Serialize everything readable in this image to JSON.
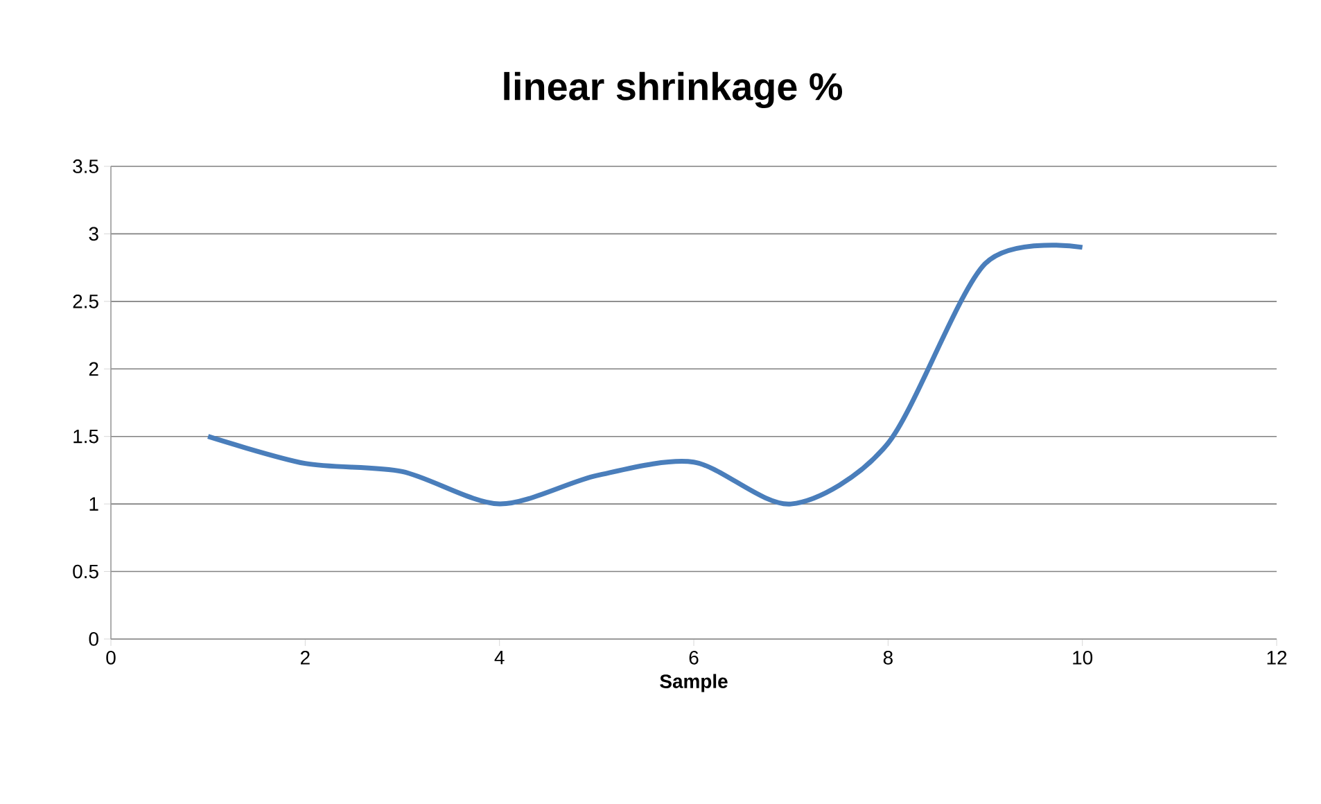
{
  "chart_data": {
    "type": "line",
    "title": "linear shrinkage %",
    "xlabel": "Sample",
    "x": [
      1,
      2,
      3,
      4,
      5,
      6,
      7,
      8,
      9,
      10
    ],
    "series": [
      {
        "color": "#4a7ebb",
        "values": [
          1.5,
          1.3,
          1.24,
          1.0,
          1.21,
          1.31,
          1.0,
          1.45,
          2.78,
          2.9
        ]
      }
    ],
    "xlim": [
      0,
      12
    ],
    "xticks": [
      0,
      2,
      4,
      6,
      8,
      10,
      12
    ],
    "ylim": [
      0,
      3.5
    ],
    "yticks": [
      0,
      0.5,
      1,
      1.5,
      2,
      2.5,
      3,
      3.5
    ],
    "grid": "y",
    "legend": false,
    "marker": "none",
    "line_style": "solid"
  }
}
